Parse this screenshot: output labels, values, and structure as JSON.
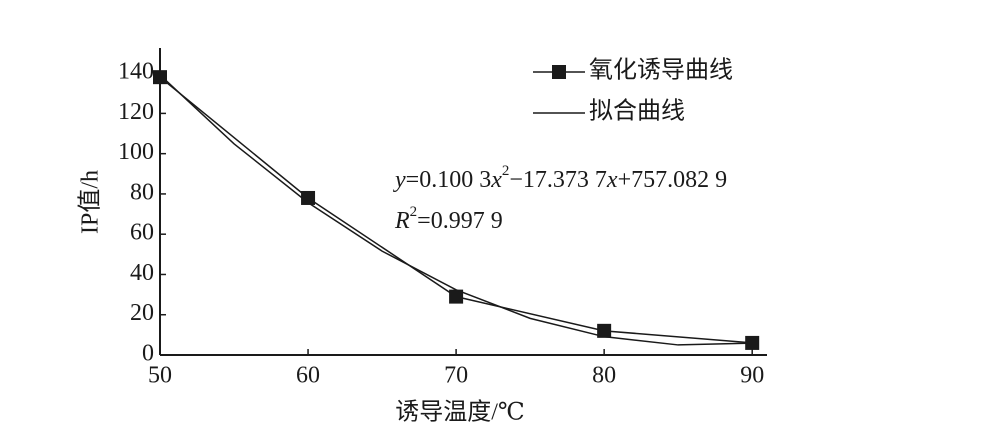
{
  "chart_data": {
    "type": "line",
    "x_label": "诱导温度/℃",
    "y_label": "IP值/h",
    "xlim": [
      50,
      91
    ],
    "xticks": [
      50,
      60,
      70,
      80,
      90
    ],
    "ylim": [
      0,
      150
    ],
    "yticks": [
      0,
      20,
      40,
      60,
      80,
      100,
      120,
      140
    ],
    "legend": "top-right",
    "series": [
      {
        "name": "氧化诱导曲线",
        "color": "#1a1a1a",
        "marker": "square",
        "x": [
          50,
          60,
          70,
          80,
          90
        ],
        "values": [
          138,
          78,
          29,
          12,
          6
        ]
      },
      {
        "name": "拟合曲线",
        "color": "#1a1a1a",
        "marker": "none",
        "x": [
          50,
          55,
          60,
          65,
          70,
          75,
          80,
          85,
          90
        ],
        "values": [
          139.1,
          104.9,
          75.7,
          51.6,
          32.4,
          18.2,
          9.1,
          5.0,
          5.9
        ]
      }
    ],
    "equation": [
      "y",
      "=0.100 3",
      "x",
      "2",
      "−17.373 7",
      "x",
      "+757.082 9"
    ],
    "r_squared": [
      "R",
      "2",
      "=0.997 9"
    ]
  }
}
